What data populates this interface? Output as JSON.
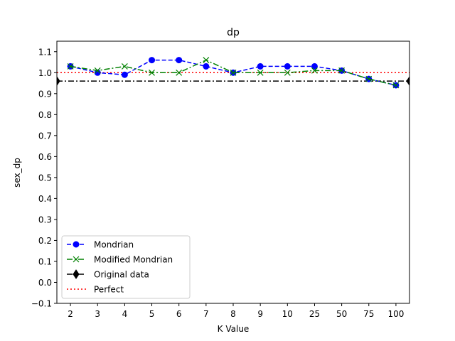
{
  "chart_data": {
    "type": "line",
    "title": "dp",
    "xlabel": "K Value",
    "ylabel": "sex_dp",
    "categories": [
      "2",
      "3",
      "4",
      "5",
      "6",
      "7",
      "8",
      "9",
      "10",
      "25",
      "50",
      "75",
      "100"
    ],
    "ylim": [
      -0.1,
      1.15
    ],
    "yticks": [
      "−0.1",
      "0.0",
      "0.1",
      "0.2",
      "0.3",
      "0.4",
      "0.5",
      "0.6",
      "0.7",
      "0.8",
      "0.9",
      "1.0",
      "1.1"
    ],
    "grid": false,
    "legend_position": "lower-left",
    "series": [
      {
        "name": "Mondrian",
        "color": "#0000ff",
        "style": "dashed",
        "marker": "circle",
        "values": [
          1.03,
          1.0,
          0.99,
          1.06,
          1.06,
          1.03,
          1.0,
          1.03,
          1.03,
          1.03,
          1.01,
          0.97,
          0.94
        ]
      },
      {
        "name": "Modified Mondrian",
        "color": "#008000",
        "style": "dashdot",
        "marker": "x",
        "values": [
          1.03,
          1.01,
          1.03,
          1.0,
          1.0,
          1.06,
          1.0,
          1.0,
          1.0,
          1.01,
          1.01,
          0.97,
          0.94
        ]
      }
    ],
    "reference_lines": [
      {
        "name": "Original data",
        "value": 0.96,
        "color": "#000000",
        "style": "dashdot",
        "marker": "diamond"
      },
      {
        "name": "Perfect",
        "value": 1.0,
        "color": "#ff0000",
        "style": "dotted"
      }
    ]
  }
}
